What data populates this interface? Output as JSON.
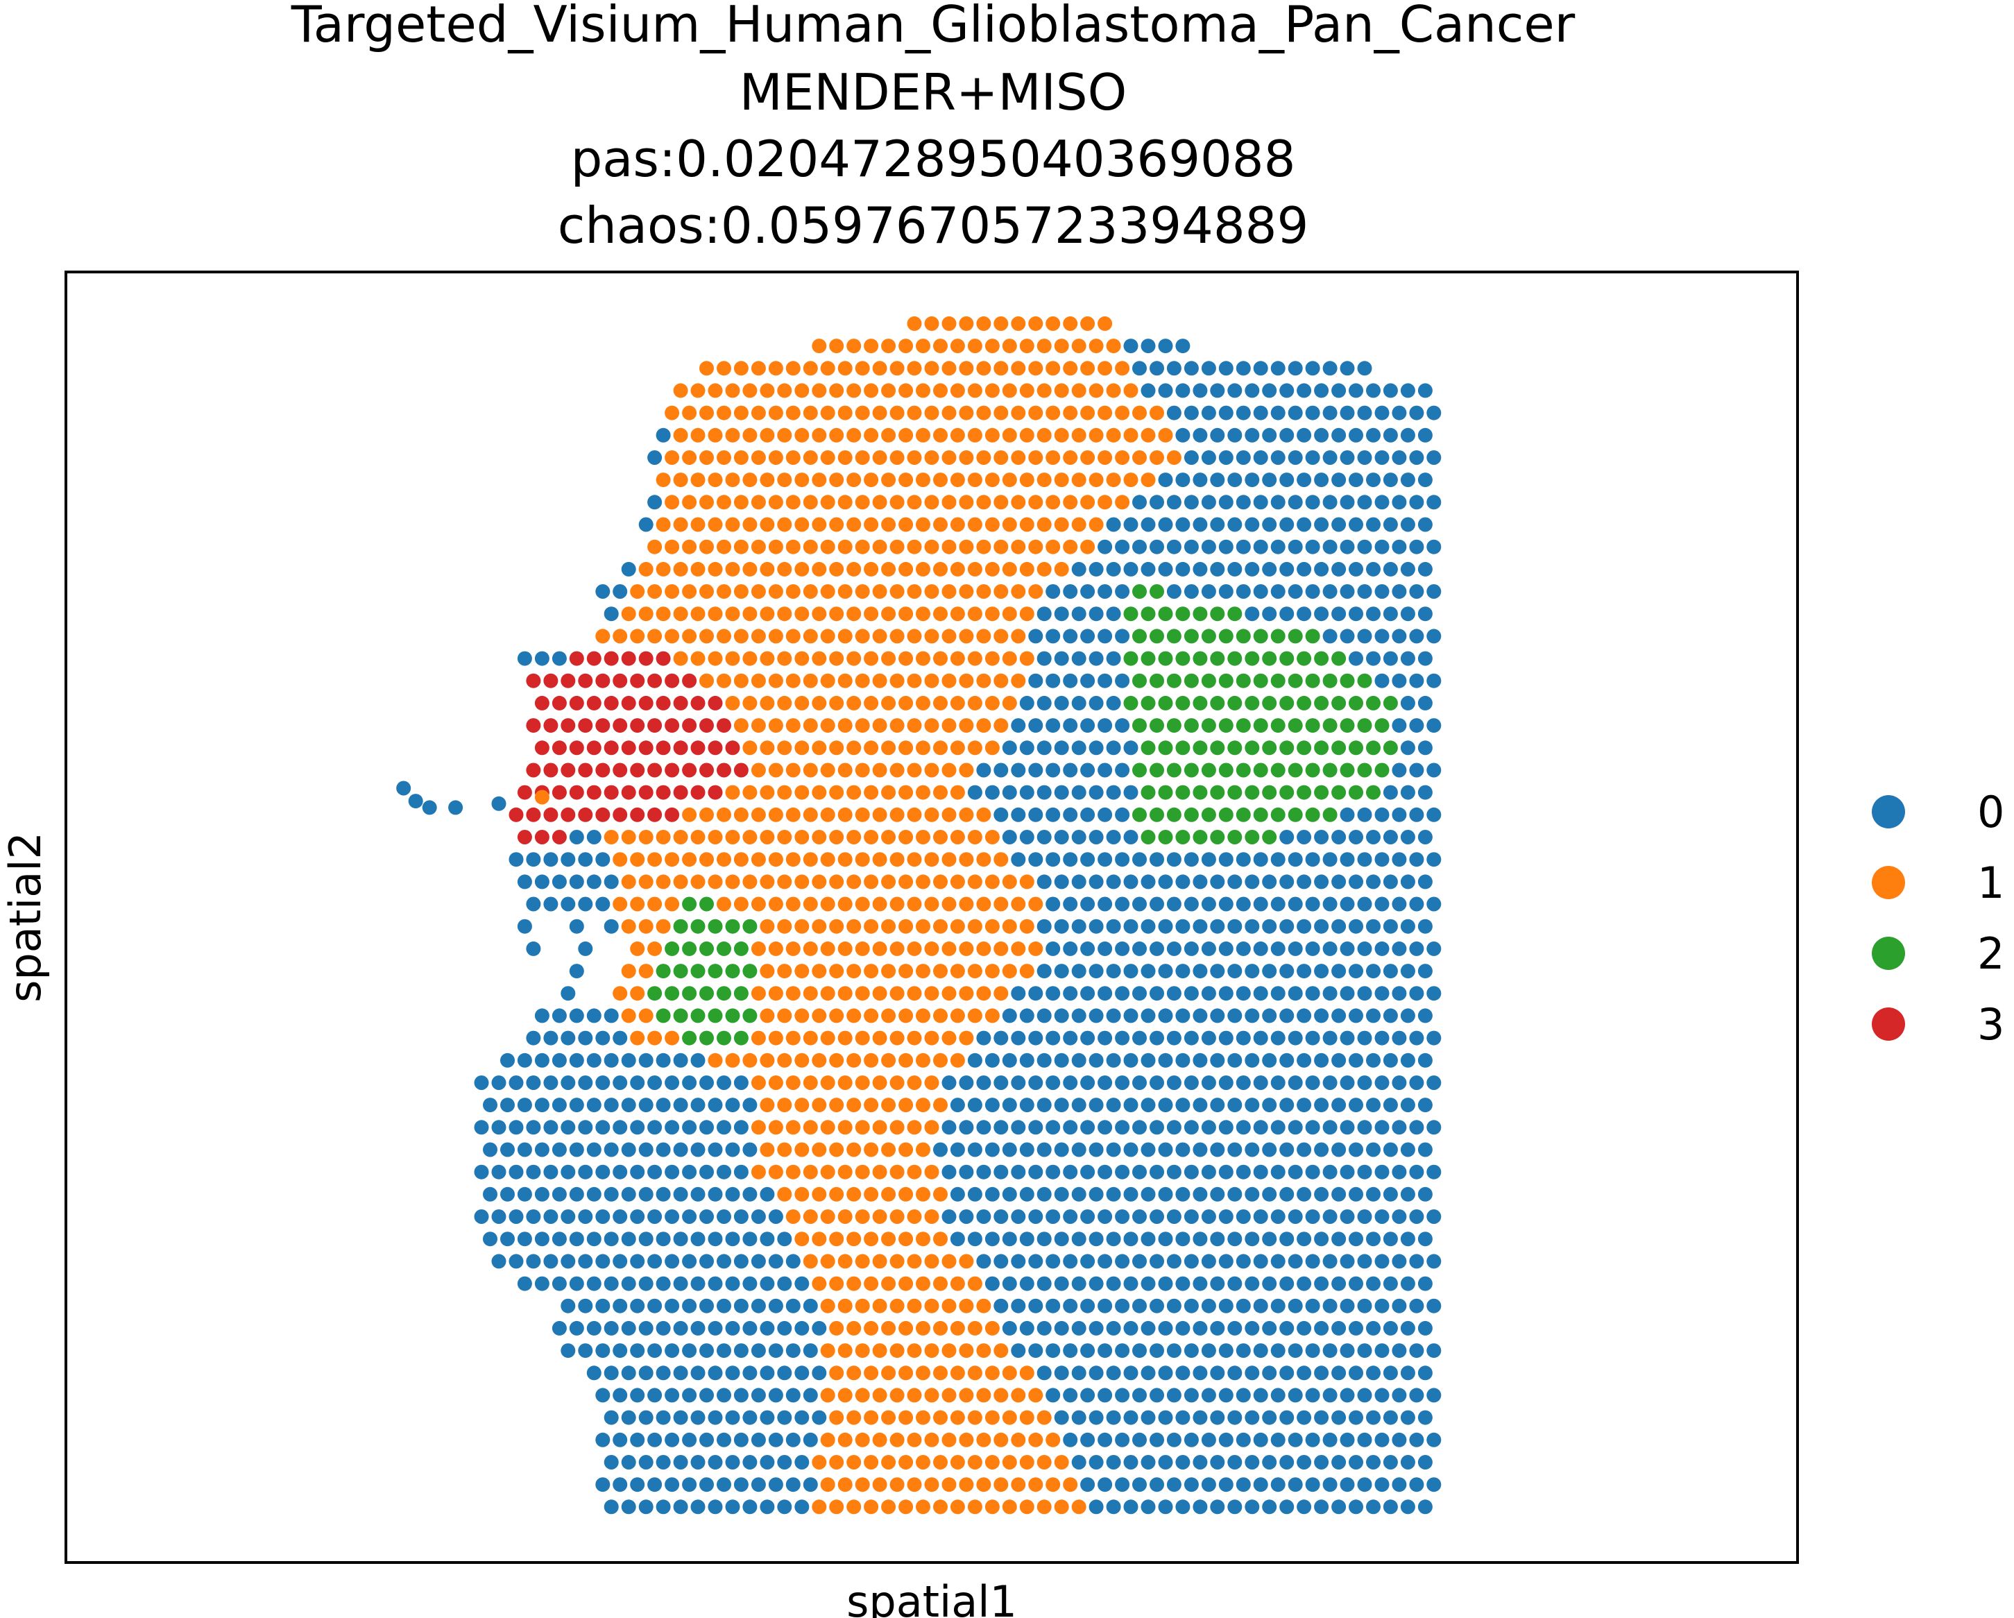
{
  "chart_data": {
    "type": "scatter",
    "title_lines": [
      "Targeted_Visium_Human_Glioblastoma_Pan_Cancer",
      "MENDER+MISO",
      "pas:0.020472895040369088",
      "chaos:0.05976705723394889"
    ],
    "xlabel": "spatial1",
    "ylabel": "spatial2",
    "xlim": [
      0,
      100
    ],
    "ylim": [
      0,
      100
    ],
    "grid": false,
    "legend_position": "right",
    "series": [
      {
        "name": "0",
        "color": "#1f77b4"
      },
      {
        "name": "1",
        "color": "#ff7f0e"
      },
      {
        "name": "2",
        "color": "#2ca02c"
      },
      {
        "name": "3",
        "color": "#d62728"
      }
    ],
    "grid_spots": {
      "x_range": [
        20,
        79
      ],
      "y_range": [
        4,
        96
      ],
      "x_step": 1.0,
      "y_step": 1.73,
      "row_offset": 0.5
    }
  }
}
